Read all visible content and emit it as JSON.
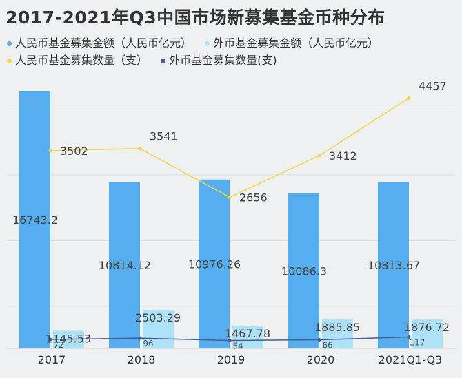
{
  "chart_data": {
    "type": "bar",
    "title": "2017-2021年Q3中国市场新募集基金币种分布",
    "categories": [
      "2017",
      "2018",
      "2019",
      "2020",
      "2021Q1-Q3"
    ],
    "series": [
      {
        "name": "人民币基金募集金额（人民币亿元）",
        "kind": "bar",
        "color": "#55aef0",
        "values": [
          16743.2,
          10814.12,
          10976.26,
          10086.3,
          10813.67
        ]
      },
      {
        "name": "外币基金募集金额（人民币亿元）",
        "kind": "bar",
        "color": "#aee2f9",
        "values": [
          1145.53,
          2503.29,
          1467.78,
          1885.85,
          1876.72
        ]
      },
      {
        "name": "人民币基金募集数量（支）",
        "kind": "line",
        "color": "#f3d64e",
        "values": [
          3502,
          3541,
          2656,
          3412,
          4457
        ]
      },
      {
        "name": "外币基金募集数量(支)",
        "kind": "line",
        "color": "#4a5d8f",
        "values": [
          72,
          96,
          54,
          66,
          117
        ]
      }
    ],
    "bar_labels": [
      "16743.2",
      "10814.12",
      "10976.26",
      "10086.3",
      "10813.67"
    ],
    "bar2_labels": [
      "1145.53",
      "2503.29",
      "1467.78",
      "1885.85",
      "1876.72"
    ],
    "line_labels": [
      "3502",
      "3541",
      "2656",
      "3412",
      "4457"
    ],
    "line2_labels": [
      "72",
      "96",
      "54",
      "66",
      "117"
    ],
    "bar_ylim": [
      0,
      17100
    ],
    "line_ylim": [
      -90,
      5100
    ],
    "grid": true,
    "legend_position": "top"
  }
}
